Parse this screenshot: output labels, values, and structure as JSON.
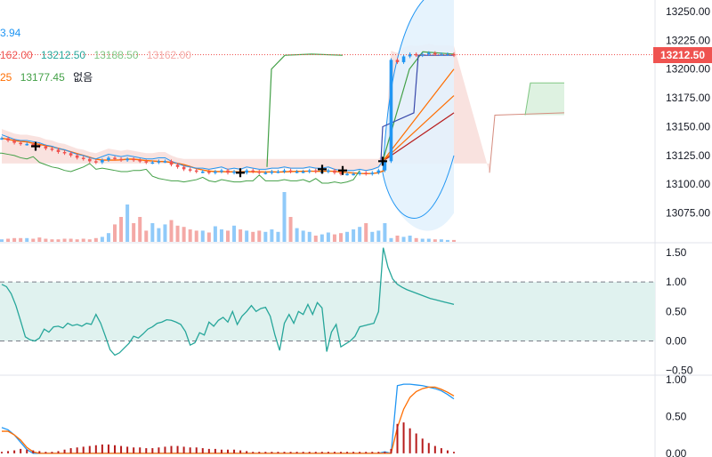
{
  "legend": {
    "line1": {
      "value": "3.94"
    },
    "line2": {
      "open": "162.00",
      "high": "13212.50",
      "low": "13188.50",
      "close": "13162.00"
    },
    "line3": {
      "prefix": "25",
      "value": "13177.45",
      "note": "없음"
    }
  },
  "current_price": {
    "label": "13212.50",
    "value": 13212.5
  },
  "colors": {
    "up": "#26a69a",
    "down": "#ef5350",
    "blue": "#2196f3",
    "orange": "#ff6d00",
    "green": "#43a047",
    "darkred": "#b71c1c",
    "navy": "#3949ab",
    "up_bar": "#90caf9",
    "down_bar": "#f4a9a6",
    "band_fill": "#e3f2fd",
    "osc_fill": "#e0f2ef",
    "grid": "#e0e3eb",
    "axis_text": "#131722",
    "cloud_red": "#f6d6d2",
    "cloud_green": "#d6efd9"
  },
  "chart_data": [
    {
      "type": "candlestick",
      "title": "",
      "y_ticks": [
        13075,
        13100,
        13125,
        13150,
        13175,
        13200,
        13225,
        13250
      ],
      "y_tick_labels": [
        "13075.00",
        "13100.00",
        "13125.00",
        "13150.00",
        "13175.00",
        "13200.00",
        "13225.00",
        "13250.00"
      ],
      "ylim": [
        13050,
        13260
      ],
      "bar_count": 73,
      "last_price": 13212.5,
      "close_series": [
        13140,
        13138,
        13136,
        13135,
        13135,
        13134,
        13133,
        13131,
        13130,
        13128,
        13127,
        13125,
        13123,
        13122,
        13120,
        13119,
        13121,
        13123,
        13122,
        13121,
        13122,
        13121,
        13120,
        13119,
        13119,
        13120,
        13120,
        13117,
        13115,
        13113,
        13112,
        13111,
        13111,
        13110,
        13111,
        13112,
        13110,
        13111,
        13110,
        13112,
        13111,
        13110,
        13110,
        13111,
        13111,
        13112,
        13111,
        13111,
        13111,
        13112,
        13111,
        13111,
        13112,
        13110,
        13109,
        13109,
        13109,
        13110,
        13109,
        13110,
        13112,
        13120,
        13208,
        13206,
        13211,
        13213,
        13212,
        13213,
        13214,
        13213,
        13213,
        13213,
        13212
      ],
      "volume": [
        4,
        5,
        6,
        6,
        6,
        5,
        7,
        5,
        4,
        4,
        5,
        5,
        4,
        5,
        4,
        6,
        8,
        14,
        28,
        40,
        60,
        30,
        40,
        18,
        30,
        22,
        28,
        35,
        26,
        24,
        20,
        18,
        18,
        15,
        25,
        20,
        18,
        26,
        20,
        18,
        16,
        18,
        16,
        20,
        16,
        80,
        40,
        22,
        18,
        16,
        10,
        12,
        15,
        12,
        14,
        16,
        20,
        24,
        30,
        16,
        18,
        30,
        6,
        10,
        8,
        10,
        6,
        5,
        5,
        4,
        4,
        3,
        3
      ],
      "volume_ylim": [
        0,
        100
      ]
    },
    {
      "type": "line",
      "title": "",
      "y_ticks": [
        -0.5,
        0,
        0.5,
        1.0,
        1.5
      ],
      "y_tick_labels": [
        "−0.50",
        "0.00",
        "0.50",
        "1.00",
        "1.50"
      ],
      "ylim": [
        -0.55,
        1.65
      ],
      "reference_lines": [
        0,
        1
      ],
      "band": [
        0,
        1
      ],
      "values": [
        0.96,
        0.92,
        0.8,
        0.6,
        0.34,
        0.07,
        0.02,
        0.0,
        0.05,
        0.2,
        0.15,
        0.24,
        0.25,
        0.22,
        0.3,
        0.26,
        0.28,
        0.25,
        0.3,
        0.28,
        0.45,
        0.3,
        0.08,
        -0.15,
        -0.24,
        -0.2,
        -0.12,
        -0.04,
        0.08,
        0.05,
        0.12,
        0.2,
        0.24,
        0.3,
        0.32,
        0.36,
        0.35,
        0.32,
        0.28,
        0.16,
        -0.07,
        -0.03,
        0.14,
        0.1,
        0.32,
        0.25,
        0.35,
        0.4,
        0.32,
        0.5,
        0.28,
        0.42,
        0.5,
        0.6,
        0.5,
        0.55,
        0.57,
        0.42,
        0.1,
        -0.16,
        0.3,
        0.45,
        0.3,
        0.5,
        0.45,
        0.62,
        0.45,
        0.65,
        0.56,
        -0.18,
        0.15,
        0.28,
        -0.1,
        -0.05,
        0.0,
        0.08,
        0.24,
        0.26,
        0.28,
        0.3,
        0.5,
        1.58,
        1.25,
        1.05,
        0.96,
        0.91,
        0.87,
        0.84,
        0.81,
        0.78,
        0.75,
        0.72,
        0.7,
        0.68,
        0.66,
        0.64,
        0.62
      ]
    },
    {
      "type": "line",
      "title": "",
      "y_ticks": [
        0,
        0.5,
        1.0
      ],
      "y_tick_labels": [
        "0.00",
        "0.50",
        "1.00"
      ],
      "ylim": [
        -0.05,
        1.05
      ],
      "series": [
        {
          "color": "blue",
          "values": [
            0.35,
            0.32,
            0.25,
            0.15,
            0.05,
            0.0,
            0.0,
            0.0,
            0.0,
            0.0,
            0.0,
            0.0,
            0.0,
            0.0,
            0.0,
            0.0,
            0.0,
            0.0,
            0.0,
            0.0,
            0.0,
            0.0,
            0.0,
            0.0,
            0.0,
            0.0,
            0.0,
            0.0,
            0.0,
            0.0,
            0.0,
            0.0,
            0.0,
            0.0,
            0.0,
            0.0,
            0.0,
            0.0,
            0.0,
            0.0,
            0.0,
            0.0,
            0.0,
            0.0,
            0.0,
            0.0,
            0.0,
            0.0,
            0.0,
            0.0,
            0.0,
            0.0,
            0.0,
            0.0,
            0.0,
            0.0,
            0.0,
            0.0,
            0.0,
            0.0,
            0.0,
            0.02,
            0.0,
            0.92,
            0.94,
            0.94,
            0.93,
            0.92,
            0.9,
            0.88,
            0.85,
            0.8,
            0.74
          ]
        },
        {
          "color": "orange",
          "values": [
            0.3,
            0.3,
            0.25,
            0.18,
            0.08,
            0.02,
            0.0,
            0.0,
            0.0,
            0.0,
            0.0,
            0.0,
            0.0,
            0.0,
            0.0,
            0.0,
            0.0,
            0.0,
            0.0,
            0.0,
            0.0,
            0.0,
            0.0,
            0.0,
            0.0,
            0.0,
            0.0,
            0.0,
            0.0,
            0.0,
            0.0,
            0.0,
            0.0,
            0.0,
            0.0,
            0.0,
            0.0,
            0.0,
            0.0,
            0.0,
            0.0,
            0.0,
            0.0,
            0.0,
            0.0,
            0.0,
            0.0,
            0.0,
            0.0,
            0.0,
            0.0,
            0.0,
            0.0,
            0.0,
            0.0,
            0.0,
            0.0,
            0.0,
            0.0,
            0.0,
            0.0,
            0.0,
            0.0,
            0.35,
            0.6,
            0.76,
            0.84,
            0.88,
            0.9,
            0.9,
            0.87,
            0.83,
            0.78
          ]
        },
        {
          "color": "darkred",
          "type": "histogram",
          "values": [
            0.02,
            0.03,
            0.04,
            0.06,
            0.05,
            0.04,
            0.03,
            0.02,
            0.02,
            0.03,
            0.05,
            0.07,
            0.08,
            0.09,
            0.1,
            0.11,
            0.12,
            0.12,
            0.11,
            0.1,
            0.09,
            0.08,
            0.08,
            0.07,
            0.07,
            0.08,
            0.09,
            0.1,
            0.1,
            0.09,
            0.08,
            0.08,
            0.07,
            0.06,
            0.06,
            0.05,
            0.05,
            0.05,
            0.04,
            0.03,
            0.02,
            0.02,
            0.02,
            0.02,
            0.02,
            0.02,
            0.02,
            0.02,
            0.02,
            0.02,
            0.02,
            0.02,
            0.02,
            0.02,
            0.02,
            0.02,
            0.02,
            0.02,
            0.02,
            0.02,
            0.02,
            0.02,
            0.06,
            0.4,
            0.42,
            0.34,
            0.27,
            0.2,
            0.14,
            0.1,
            0.07,
            0.04,
            0.02
          ]
        }
      ]
    }
  ]
}
